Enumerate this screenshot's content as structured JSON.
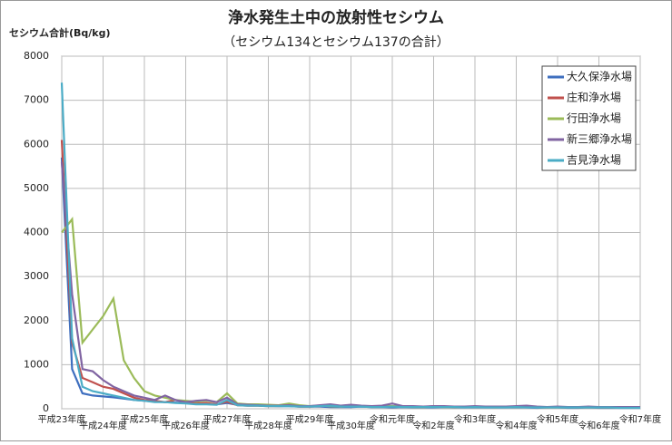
{
  "chart_data": {
    "type": "line",
    "title": "浄水発生土中の放射性セシウム",
    "subtitle": "（セシウム134とセシウム137の合計）",
    "y_label": "セシウム合計(Bq/kg)",
    "categories": [
      "平成23年度",
      null,
      null,
      null,
      "平成24年度",
      null,
      null,
      null,
      "平成25年度",
      null,
      null,
      null,
      "平成26年度",
      null,
      null,
      null,
      "平成27年度",
      null,
      null,
      null,
      "平成28年度",
      null,
      null,
      null,
      "平成29年度",
      null,
      null,
      null,
      "平成30年度",
      null,
      null,
      null,
      "令和元年度",
      null,
      null,
      null,
      "令和2年度",
      null,
      null,
      null,
      "令和3年度",
      null,
      null,
      null,
      "令和4年度",
      null,
      null,
      null,
      "令和5年度",
      null,
      null,
      null,
      "令和6年度",
      null,
      null,
      null,
      "令和7年度"
    ],
    "series": [
      {
        "name": "大久保浄水場",
        "color": "#3f6fbf",
        "values": [
          5700,
          900,
          350,
          300,
          280,
          260,
          230,
          200,
          180,
          160,
          150,
          140,
          130,
          120,
          110,
          100,
          130,
          90,
          80,
          80,
          70,
          60,
          60,
          50,
          50,
          50,
          40,
          40,
          40,
          50,
          40,
          40,
          30,
          40,
          30,
          30,
          30,
          40,
          30,
          30,
          30,
          30,
          30,
          30,
          30,
          30,
          20,
          30,
          30,
          20,
          20,
          30,
          20,
          20,
          20,
          20,
          20
        ]
      },
      {
        "name": "庄和浄水場",
        "color": "#c0504d",
        "values": [
          6100,
          1500,
          700,
          600,
          500,
          450,
          350,
          250,
          200,
          180,
          150,
          200,
          150,
          120,
          130,
          100,
          160,
          80,
          70,
          70,
          60,
          60,
          70,
          50,
          50,
          60,
          80,
          50,
          60,
          60,
          50,
          50,
          60,
          50,
          50,
          40,
          60,
          50,
          40,
          40,
          50,
          40,
          40,
          40,
          50,
          40,
          40,
          30,
          40,
          40,
          30,
          40,
          30,
          30,
          30,
          30,
          30
        ]
      },
      {
        "name": "行田浄水場",
        "color": "#9bbb59",
        "values": [
          4000,
          4300,
          1500,
          1800,
          2100,
          2500,
          1100,
          700,
          400,
          300,
          250,
          200,
          180,
          160,
          180,
          150,
          350,
          120,
          100,
          100,
          90,
          80,
          120,
          80,
          60,
          70,
          60,
          50,
          60,
          60,
          50,
          50,
          60,
          50,
          40,
          40,
          50,
          40,
          40,
          40,
          40,
          40,
          30,
          40,
          40,
          40,
          30,
          30,
          30,
          30,
          30,
          30,
          30,
          30,
          30,
          30,
          30
        ]
      },
      {
        "name": "新三郷浄水場",
        "color": "#8064a2",
        "values": [
          5600,
          2600,
          900,
          850,
          650,
          500,
          400,
          300,
          250,
          200,
          300,
          200,
          150,
          180,
          200,
          150,
          250,
          100,
          90,
          80,
          70,
          70,
          80,
          60,
          60,
          80,
          100,
          70,
          90,
          70,
          60,
          70,
          120,
          60,
          60,
          50,
          60,
          60,
          50,
          50,
          60,
          50,
          50,
          50,
          60,
          70,
          50,
          40,
          50,
          40,
          40,
          50,
          40,
          40,
          40,
          40,
          40
        ]
      },
      {
        "name": "吉見浄水場",
        "color": "#4bacc6",
        "values": [
          7400,
          1600,
          500,
          400,
          350,
          300,
          250,
          200,
          180,
          150,
          150,
          130,
          120,
          100,
          100,
          90,
          200,
          80,
          70,
          70,
          60,
          60,
          60,
          50,
          50,
          60,
          70,
          50,
          50,
          50,
          40,
          40,
          50,
          40,
          40,
          40,
          40,
          40,
          40,
          30,
          40,
          30,
          30,
          30,
          40,
          30,
          30,
          30,
          30,
          30,
          30,
          30,
          30,
          30,
          20,
          20,
          20
        ]
      }
    ],
    "ylim": [
      0,
      8000
    ],
    "yticks": [
      0,
      1000,
      2000,
      3000,
      4000,
      5000,
      6000,
      7000,
      8000
    ],
    "grid": true,
    "legend": "upper right"
  }
}
